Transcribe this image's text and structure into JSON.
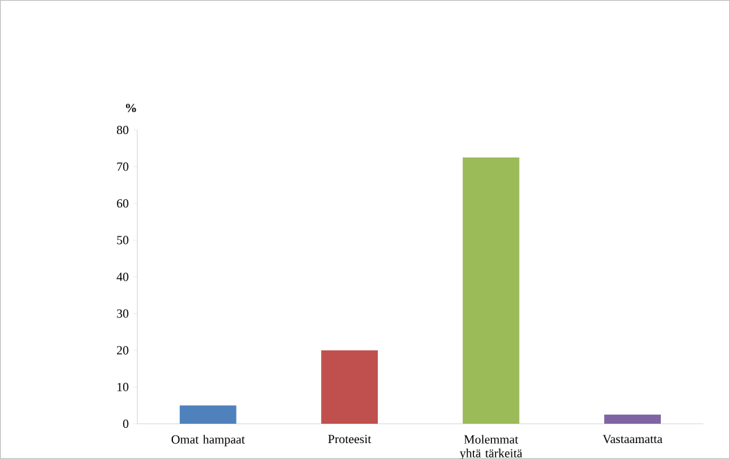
{
  "chart_data": {
    "type": "bar",
    "ylabel": "%",
    "categories": [
      "Omat hampaat",
      "Proteesit",
      "Molemmat yhtä tärkeitä",
      "Vastaamatta"
    ],
    "values": [
      5,
      20,
      72.5,
      2.5
    ],
    "colors": [
      "#4f81bd",
      "#c0504d",
      "#9bbb59",
      "#8064a2"
    ],
    "ylim": [
      0,
      80
    ],
    "yticks": [
      0,
      10,
      20,
      30,
      40,
      50,
      60,
      70,
      80
    ],
    "grid": false
  }
}
